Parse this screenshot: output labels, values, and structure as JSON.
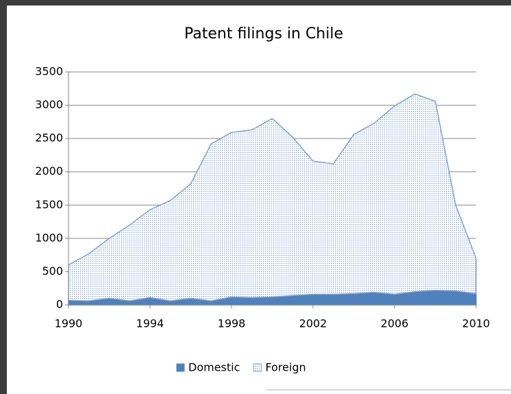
{
  "chart_data": {
    "type": "stacked-area",
    "title": "Patent filings in Chile",
    "x": [
      1990,
      1991,
      1992,
      1993,
      1994,
      1995,
      1996,
      1997,
      1998,
      1999,
      2000,
      2001,
      2002,
      2003,
      2004,
      2005,
      2006,
      2007,
      2008,
      2009,
      2010
    ],
    "series": [
      {
        "name": "Domestic",
        "color": "#4f81bd",
        "values": [
          70,
          60,
          100,
          60,
          110,
          60,
          100,
          60,
          120,
          110,
          120,
          140,
          160,
          160,
          170,
          190,
          160,
          200,
          220,
          210,
          170
        ]
      },
      {
        "name": "Foreign",
        "color": "#7ea3d4",
        "values": [
          530,
          710,
          900,
          1140,
          1320,
          1510,
          1720,
          2360,
          2470,
          2520,
          2680,
          2380,
          2000,
          1960,
          2390,
          2540,
          2830,
          2970,
          2840,
          1290,
          530
        ]
      }
    ],
    "xlim": [
      1990,
      2010
    ],
    "xticks": [
      1990,
      1994,
      1998,
      2002,
      2006,
      2010
    ],
    "ylim": [
      0,
      3500
    ],
    "yticks": [
      0,
      500,
      1000,
      1500,
      2000,
      2500,
      3000,
      3500
    ],
    "grid": true,
    "legend": "bottom"
  }
}
